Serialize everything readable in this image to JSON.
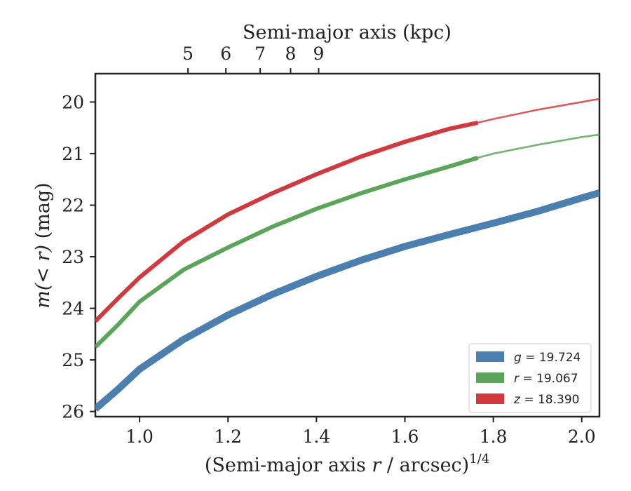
{
  "chart_data": {
    "type": "line",
    "x_axis": {
      "label_main": "(Semi-major axis ",
      "label_var": "r",
      "label_tail": " / arcsec)",
      "label_sup": "1/4",
      "range": [
        0.9,
        2.04
      ],
      "ticks": [
        1.0,
        1.2,
        1.4,
        1.6,
        1.8,
        2.0
      ],
      "tick_labels": [
        "1.0",
        "1.2",
        "1.4",
        "1.6",
        "1.8",
        "2.0"
      ]
    },
    "top_axis": {
      "label": "Semi-major axis (kpc)",
      "ticks_x": [
        1.1095,
        1.1952,
        1.2728,
        1.3415,
        1.405
      ],
      "tick_labels": [
        "5",
        "6",
        "7",
        "8",
        "9"
      ]
    },
    "y_axis": {
      "label_var": "m(< r)",
      "label_unit": " (mag)",
      "range": [
        26.1,
        19.45
      ],
      "inverted": true,
      "ticks": [
        20,
        21,
        22,
        23,
        24,
        25,
        26
      ],
      "tick_labels": [
        "20",
        "21",
        "22",
        "23",
        "24",
        "25",
        "26"
      ]
    },
    "data_end_x": 1.765,
    "series": [
      {
        "key": "z",
        "name_var": "z",
        "name_value": " = 18.390",
        "color": "#d03a3f",
        "x": [
          0.9,
          0.95,
          1.0,
          1.1,
          1.2,
          1.3,
          1.4,
          1.5,
          1.6,
          1.7,
          1.765,
          1.8,
          1.9,
          2.0,
          2.04
        ],
        "y": [
          24.25,
          23.82,
          23.4,
          22.7,
          22.18,
          21.77,
          21.4,
          21.06,
          20.77,
          20.52,
          20.4,
          20.33,
          20.15,
          20.0,
          19.94
        ]
      },
      {
        "key": "r",
        "name_var": "r",
        "name_value": " = 19.067",
        "color": "#5aa55a",
        "x": [
          0.9,
          0.95,
          1.0,
          1.1,
          1.2,
          1.3,
          1.4,
          1.5,
          1.6,
          1.7,
          1.765,
          1.8,
          1.9,
          2.0,
          2.04
        ],
        "y": [
          24.75,
          24.33,
          23.87,
          23.25,
          22.82,
          22.42,
          22.07,
          21.77,
          21.5,
          21.25,
          21.08,
          21.0,
          20.83,
          20.68,
          20.63
        ]
      },
      {
        "key": "g",
        "name_var": "g",
        "name_value": " = 19.724",
        "color": "#4a7fb0",
        "x": [
          0.9,
          0.95,
          1.0,
          1.1,
          1.2,
          1.3,
          1.4,
          1.5,
          1.6,
          1.7,
          1.8,
          1.9,
          2.0,
          2.04
        ],
        "y": [
          25.95,
          25.58,
          25.18,
          24.6,
          24.13,
          23.73,
          23.38,
          23.07,
          22.8,
          22.57,
          22.35,
          22.12,
          21.86,
          21.76
        ]
      }
    ],
    "legend": {
      "placement": "lower-right",
      "order": [
        "g",
        "r",
        "z"
      ]
    }
  }
}
